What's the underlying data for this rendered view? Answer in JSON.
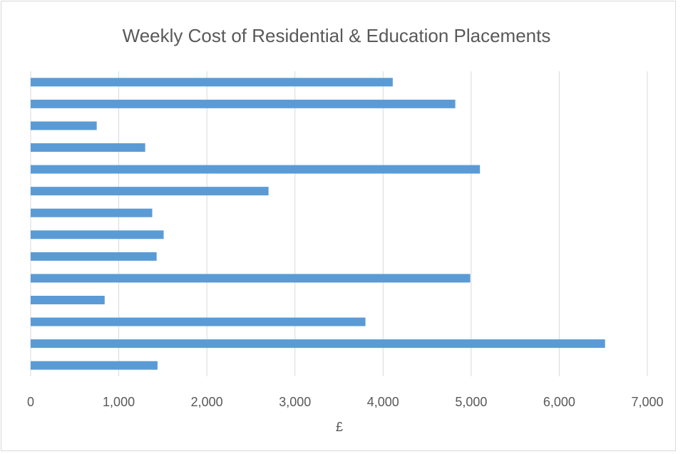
{
  "chart_data": {
    "type": "barh",
    "title": "Weekly Cost of Residential & Education Placements",
    "xlabel": "£",
    "categories": [
      null,
      null,
      null,
      null,
      null,
      null,
      null,
      null,
      null,
      null,
      null,
      null,
      null,
      null
    ],
    "values": [
      4110,
      4820,
      750,
      1300,
      5100,
      2700,
      1380,
      1510,
      1430,
      4990,
      840,
      3800,
      6520,
      1440
    ],
    "color": "#5b9bd5",
    "xlim": [
      0,
      7000
    ],
    "xticks": [
      0,
      {
        "value": 1000,
        "label": "1,000"
      },
      {
        "value": 2000,
        "label": "2,000"
      },
      {
        "value": 3000,
        "label": "3,000"
      },
      {
        "value": 4000,
        "label": "4,000"
      },
      {
        "value": 5000,
        "label": "5,000"
      },
      {
        "value": 6000,
        "label": "6,000"
      },
      {
        "value": 7000,
        "label": "7,000"
      }
    ],
    "grid": true
  }
}
